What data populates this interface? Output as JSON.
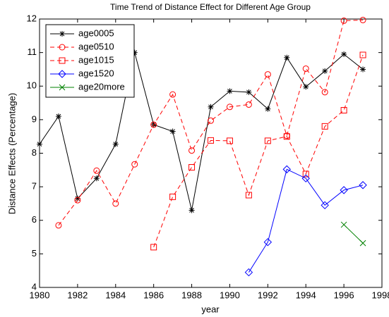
{
  "chart_data": {
    "type": "line",
    "title": "Time Trend of Distance Effect for Different Age Group",
    "x_label": "year",
    "y_label": "Distance Effects (Percentage)",
    "x": [
      1980,
      1981,
      1982,
      1983,
      1984,
      1985,
      1986,
      1987,
      1988,
      1989,
      1990,
      1991,
      1992,
      1993,
      1994,
      1995,
      1996,
      1997
    ],
    "xlim": [
      1980,
      1998
    ],
    "xticks": [
      1980,
      1982,
      1984,
      1986,
      1988,
      1990,
      1992,
      1994,
      1996,
      1998
    ],
    "ylim": [
      4,
      12
    ],
    "yticks": [
      4,
      5,
      6,
      7,
      8,
      9,
      10,
      11,
      12
    ],
    "grid": false,
    "legend": "upper left",
    "series": [
      {
        "name": "age0005",
        "color": "#000000",
        "marker": "star",
        "linestyle": "solid",
        "values": [
          8.27,
          9.1,
          6.65,
          7.25,
          8.27,
          11.0,
          8.85,
          8.65,
          6.3,
          9.38,
          9.85,
          9.82,
          9.32,
          10.85,
          9.98,
          10.45,
          10.95,
          10.5
        ]
      },
      {
        "name": "age0510",
        "color": "#ff0000",
        "marker": "circle",
        "linestyle": "dashed",
        "values": [
          null,
          5.85,
          6.6,
          7.48,
          6.5,
          7.67,
          8.85,
          9.75,
          8.08,
          8.97,
          9.38,
          9.45,
          10.35,
          8.52,
          10.52,
          9.82,
          11.95,
          11.97
        ]
      },
      {
        "name": "age1015",
        "color": "#ff0000",
        "marker": "square",
        "linestyle": "dashed",
        "values": [
          null,
          null,
          null,
          null,
          null,
          null,
          5.2,
          6.7,
          7.58,
          8.38,
          8.37,
          6.75,
          8.37,
          8.5,
          7.38,
          8.8,
          9.28,
          10.93
        ]
      },
      {
        "name": "age1520",
        "color": "#0000ff",
        "marker": "diamond",
        "linestyle": "solid",
        "values": [
          null,
          null,
          null,
          null,
          null,
          null,
          null,
          null,
          null,
          null,
          null,
          4.45,
          5.35,
          7.52,
          7.25,
          6.45,
          6.9,
          7.05
        ]
      },
      {
        "name": "age20more",
        "color": "#008000",
        "marker": "x",
        "linestyle": "solid",
        "values": [
          null,
          null,
          null,
          null,
          null,
          null,
          null,
          null,
          null,
          null,
          null,
          null,
          null,
          null,
          null,
          null,
          5.87,
          5.32
        ]
      }
    ]
  }
}
